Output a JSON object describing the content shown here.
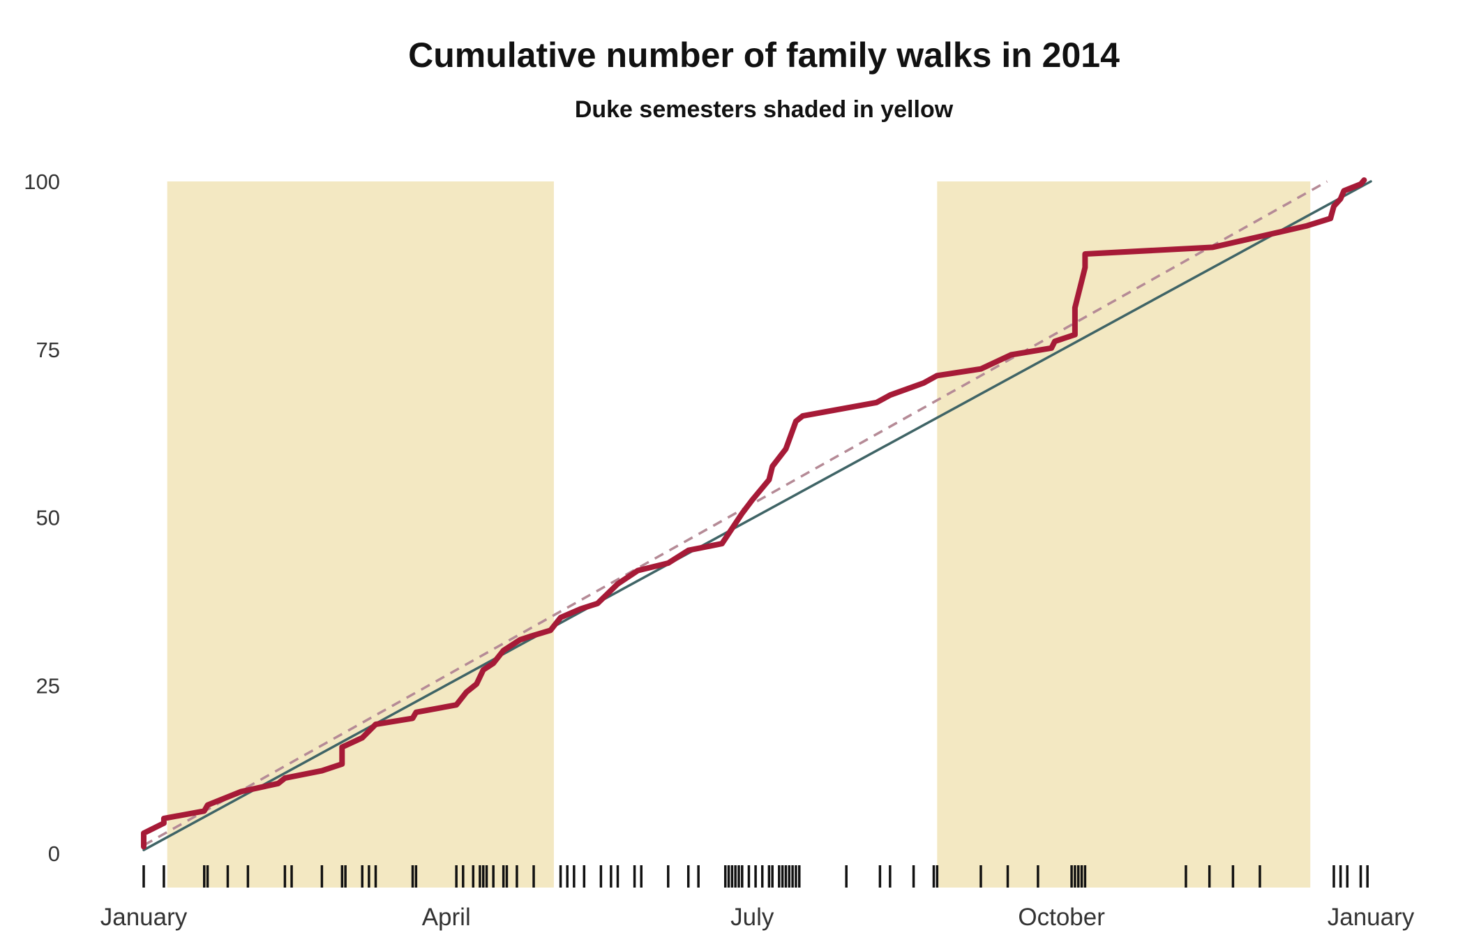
{
  "chart_data": {
    "type": "line",
    "title": "Cumulative number of family walks in 2014",
    "subtitle": "Duke semesters shaded in yellow",
    "xlabel": "",
    "ylabel": "",
    "x_ticks": [
      {
        "day": 0,
        "label": "January"
      },
      {
        "day": 90,
        "label": "April"
      },
      {
        "day": 181,
        "label": "July"
      },
      {
        "day": 273,
        "label": "October"
      },
      {
        "day": 365,
        "label": "January"
      }
    ],
    "y_ticks": [
      0,
      25,
      50,
      75,
      100
    ],
    "xlim": [
      0,
      365
    ],
    "ylim": [
      0,
      100
    ],
    "grid": false,
    "shaded_regions": [
      {
        "start": 7,
        "end": 122,
        "color": "#f3e8c2"
      },
      {
        "start": 236,
        "end": 347,
        "color": "#f3e8c2"
      }
    ],
    "series": [
      {
        "style": "solid-thick",
        "color": "#a61a37",
        "points": [
          [
            0,
            1
          ],
          [
            0,
            3
          ],
          [
            6,
            4.5
          ],
          [
            6,
            5.2
          ],
          [
            18,
            6.3
          ],
          [
            19,
            7.2
          ],
          [
            29,
            9.2
          ],
          [
            40,
            10.4
          ],
          [
            42,
            11.2
          ],
          [
            53,
            12.3
          ],
          [
            59,
            13.3
          ],
          [
            59,
            15.8
          ],
          [
            65,
            17.2
          ],
          [
            69,
            19.2
          ],
          [
            80,
            20.1
          ],
          [
            81,
            21.0
          ],
          [
            93,
            22.1
          ],
          [
            96,
            24.0
          ],
          [
            99,
            25.2
          ],
          [
            101,
            27.3
          ],
          [
            104,
            28.3
          ],
          [
            107,
            30.2
          ],
          [
            112,
            31.8
          ],
          [
            115,
            32.3
          ],
          [
            121,
            33.2
          ],
          [
            124,
            35.1
          ],
          [
            130,
            36.4
          ],
          [
            135,
            37.2
          ],
          [
            141,
            40.1
          ],
          [
            147,
            42.1
          ],
          [
            156,
            43.2
          ],
          [
            162,
            45.1
          ],
          [
            172,
            46.1
          ],
          [
            178,
            50.6
          ],
          [
            181,
            52.6
          ],
          [
            186,
            55.6
          ],
          [
            187,
            57.6
          ],
          [
            191,
            60.2
          ],
          [
            194,
            64.3
          ],
          [
            196,
            65.1
          ],
          [
            218,
            67.1
          ],
          [
            222,
            68.2
          ],
          [
            232,
            70.0
          ],
          [
            236,
            71.1
          ],
          [
            249,
            72.1
          ],
          [
            258,
            74.2
          ],
          [
            270,
            75.2
          ],
          [
            271,
            76.2
          ],
          [
            277,
            77.2
          ],
          [
            277,
            81.2
          ],
          [
            279,
            85.2
          ],
          [
            280,
            87.2
          ],
          [
            280,
            89.2
          ],
          [
            318,
            90.2
          ],
          [
            346,
            93.4
          ],
          [
            353,
            94.5
          ],
          [
            354,
            96.3
          ],
          [
            356,
            97.4
          ],
          [
            357,
            98.6
          ],
          [
            362,
            99.6
          ],
          [
            363,
            100.2
          ]
        ]
      },
      {
        "style": "solid-thin",
        "color": "#3f6466",
        "points": [
          [
            0,
            0.5
          ],
          [
            365,
            100
          ]
        ]
      },
      {
        "style": "dashed",
        "color": "#b58a96",
        "points": [
          [
            0,
            1.2
          ],
          [
            352,
            100
          ]
        ]
      }
    ],
    "rug": [
      0,
      6,
      18,
      19,
      25,
      31,
      42,
      44,
      53,
      59,
      60,
      65,
      67,
      69,
      80,
      81,
      93,
      95,
      98,
      100,
      101,
      102,
      104,
      107,
      108,
      111,
      116,
      124,
      126,
      128,
      131,
      136,
      139,
      141,
      146,
      148,
      156,
      162,
      165,
      173,
      174,
      175,
      176,
      177,
      178,
      180,
      182,
      184,
      186,
      187,
      189,
      190,
      191,
      192,
      193,
      194,
      195,
      209,
      219,
      222,
      229,
      235,
      236,
      249,
      257,
      266,
      276,
      277,
      278,
      279,
      280,
      310,
      317,
      324,
      332,
      354,
      356,
      358,
      362,
      364
    ]
  }
}
